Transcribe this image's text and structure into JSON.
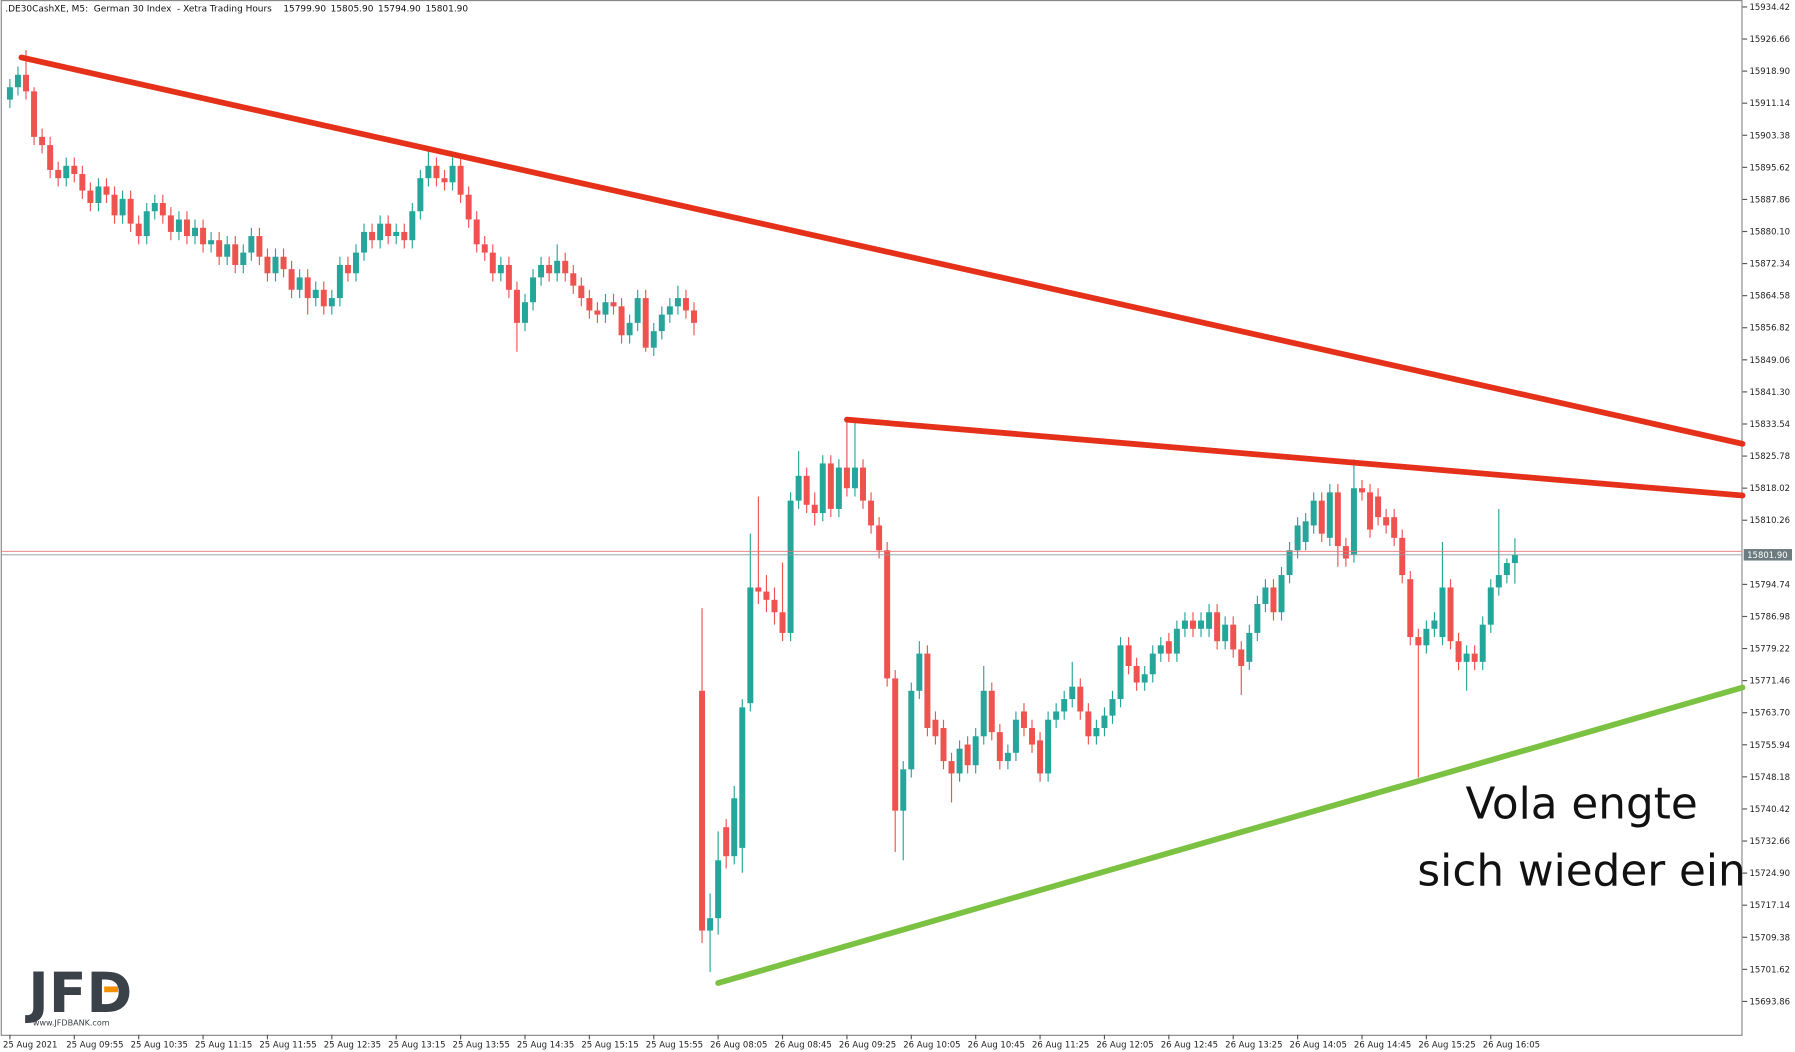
{
  "header": {
    "title": ".DE30CashXE, M5:  German 30 Index  - Xetra Trading Hours",
    "quote": [
      "15799.90",
      "15805.90",
      "15794.90",
      "15801.90"
    ]
  },
  "annotation": [
    "Vola engte",
    "sich wieder ein"
  ],
  "logo": {
    "text": "JFD",
    "url": "www.JFDBANK.com"
  },
  "chart_data": {
    "type": "candlestick",
    "up_color": "#26a69a",
    "down_color": "#ef5350",
    "categories": [
      "25 Aug 2021",
      null,
      null,
      null,
      null,
      null,
      null,
      null,
      "25 Aug 09:55",
      null,
      null,
      null,
      null,
      null,
      null,
      null,
      "25 Aug 10:35",
      null,
      null,
      null,
      null,
      null,
      null,
      null,
      "25 Aug 11:15",
      null,
      null,
      null,
      null,
      null,
      null,
      null,
      "25 Aug 11:55",
      null,
      null,
      null,
      null,
      null,
      null,
      null,
      "25 Aug 12:35",
      null,
      null,
      null,
      null,
      null,
      null,
      null,
      "25 Aug 13:15",
      null,
      null,
      null,
      null,
      null,
      null,
      null,
      "25 Aug 13:55",
      null,
      null,
      null,
      null,
      null,
      null,
      null,
      "25 Aug 14:35",
      null,
      null,
      null,
      null,
      null,
      null,
      null,
      "25 Aug 15:15",
      null,
      null,
      null,
      null,
      null,
      null,
      null,
      "25 Aug 15:55",
      null,
      null,
      null,
      null,
      null,
      null,
      null,
      "26 Aug 08:05",
      null,
      null,
      null,
      null,
      null,
      null,
      null,
      "26 Aug 08:45",
      null,
      null,
      null,
      null,
      null,
      null,
      null,
      "26 Aug 09:25",
      null,
      null,
      null,
      null,
      null,
      null,
      null,
      "26 Aug 10:05",
      null,
      null,
      null,
      null,
      null,
      null,
      null,
      "26 Aug 10:45",
      null,
      null,
      null,
      null,
      null,
      null,
      null,
      "26 Aug 11:25",
      null,
      null,
      null,
      null,
      null,
      null,
      null,
      "26 Aug 12:05",
      null,
      null,
      null,
      null,
      null,
      null,
      null,
      "26 Aug 12:45",
      null,
      null,
      null,
      null,
      null,
      null,
      null,
      "26 Aug 13:25",
      null,
      null,
      null,
      null,
      null,
      null,
      null,
      "26 Aug 14:05",
      null,
      null,
      null,
      null,
      null,
      null,
      null,
      "26 Aug 14:45",
      null,
      null,
      null,
      null,
      null,
      null,
      null,
      "26 Aug 15:25",
      null,
      null,
      null,
      null,
      null,
      null,
      null,
      "26 Aug 16:05",
      null,
      null,
      null
    ],
    "open": [
      15912,
      15915,
      15918,
      15914,
      15903,
      15901,
      15895,
      15893,
      15896,
      15894,
      15890,
      15887,
      15891,
      15889,
      15884,
      15888,
      15882,
      15879,
      15885,
      15887,
      15884,
      15880,
      15883,
      15879,
      15881,
      15877,
      15878,
      15874,
      15877,
      15872,
      15875,
      15879,
      15874,
      15870,
      15874,
      15871,
      15866,
      15869,
      15864,
      15866,
      15862,
      15864,
      15872,
      15870,
      15875,
      15880,
      15878,
      15882,
      15879,
      15880,
      15878,
      15885,
      15893,
      15896,
      15893,
      15892,
      15896,
      15889,
      15883,
      15877,
      15875,
      15870,
      15872,
      15866,
      15858,
      15863,
      15869,
      15872,
      15870,
      15873,
      15870,
      15867,
      15864,
      15861,
      15860,
      15863,
      15862,
      15855,
      15858,
      15864,
      15852,
      15856,
      15860,
      15862,
      15864,
      15861,
      15769,
      15711,
      15714,
      15736,
      15729,
      15731,
      15766,
      15794,
      15793,
      15791,
      15788,
      15783,
      15815,
      15821,
      15814,
      15812,
      15824,
      15813,
      15823,
      15818,
      15823,
      15815,
      15809,
      15803,
      15772,
      15740,
      15750,
      15769,
      15778,
      15762,
      15760,
      15752,
      15749,
      15756,
      15751,
      15758,
      15769,
      15759,
      15752,
      15754,
      15764,
      15760,
      15757,
      15749,
      15762,
      15764,
      15767,
      15770,
      15764,
      15758,
      15760,
      15763,
      15767,
      15780,
      15775,
      15771,
      15773,
      15778,
      15781,
      15778,
      15784,
      15786,
      15784,
      15784,
      15788,
      15781,
      15785,
      15779,
      15776,
      15783,
      15790,
      15794,
      15788,
      15797,
      15803,
      15805,
      15809,
      15815,
      15806,
      15817,
      15804,
      15802,
      15818,
      15817,
      15816,
      15811,
      15811,
      15806,
      15796,
      15782,
      15780,
      15784,
      15782,
      15794,
      15781,
      15776,
      15778,
      15776,
      15785,
      15794,
      15797,
      15799.9
    ],
    "high": [
      15917,
      15920,
      15924,
      15915,
      15905,
      15903,
      15897,
      15898,
      15898,
      15896,
      15892,
      15893,
      15893,
      15891,
      15890,
      15890,
      15884,
      15887,
      15889,
      15889,
      15886,
      15885,
      15885,
      15883,
      15883,
      15880,
      15880,
      15879,
      15879,
      15877,
      15881,
      15881,
      15876,
      15876,
      15876,
      15873,
      15871,
      15871,
      15868,
      15868,
      15866,
      15874,
      15874,
      15877,
      15882,
      15882,
      15884,
      15884,
      15882,
      15882,
      15887,
      15895,
      15900,
      15898,
      15895,
      15898,
      15898,
      15891,
      15885,
      15879,
      15877,
      15874,
      15874,
      15868,
      15865,
      15871,
      15874,
      15874,
      15877,
      15875,
      15872,
      15869,
      15866,
      15863,
      15865,
      15865,
      15864,
      15860,
      15866,
      15866,
      15858,
      15862,
      15864,
      15867,
      15866,
      15863,
      15789,
      15720,
      15735,
      15738,
      15746,
      15767,
      15807,
      15816,
      15797,
      15794,
      15800,
      15817,
      15827,
      15823,
      15817,
      15826,
      15826,
      15825,
      15834,
      15834,
      15825,
      15817,
      15811,
      15805,
      15774,
      15752,
      15771,
      15781,
      15780,
      15764,
      15762,
      15754,
      15757,
      15758,
      15760,
      15775,
      15771,
      15761,
      15756,
      15764,
      15766,
      15762,
      15759,
      15764,
      15766,
      15769,
      15776,
      15772,
      15766,
      15762,
      15765,
      15769,
      15782,
      15782,
      15777,
      15775,
      15780,
      15782,
      15783,
      15786,
      15788,
      15788,
      15788,
      15790,
      15790,
      15787,
      15787,
      15781,
      15785,
      15792,
      15796,
      15796,
      15799,
      15805,
      15811,
      15812,
      15817,
      15817,
      15819,
      15819,
      15806,
      15825,
      15820,
      15819,
      15818,
      15813,
      15813,
      15808,
      15798,
      15784,
      15786,
      15788,
      15805,
      15796,
      15783,
      15780,
      15780,
      15787,
      15796,
      15813,
      15801,
      15805.9
    ],
    "low": [
      15910,
      15913,
      15912,
      15901,
      15899,
      15893,
      15891,
      15891,
      15892,
      15888,
      15885,
      15885,
      15887,
      15882,
      15882,
      15880,
      15877,
      15877,
      15883,
      15882,
      15878,
      15878,
      15877,
      15877,
      15875,
      15875,
      15872,
      15872,
      15870,
      15870,
      15873,
      15872,
      15868,
      15868,
      15869,
      15864,
      15864,
      15860,
      15862,
      15860,
      15860,
      15862,
      15868,
      15868,
      15873,
      15876,
      15876,
      15877,
      15877,
      15876,
      15876,
      15883,
      15891,
      15891,
      15890,
      15890,
      15887,
      15881,
      15875,
      15873,
      15868,
      15868,
      15864,
      15851,
      15856,
      15861,
      15867,
      15868,
      15868,
      15868,
      15865,
      15862,
      15859,
      15858,
      15858,
      15860,
      15853,
      15853,
      15856,
      15851,
      15850,
      15854,
      15858,
      15860,
      15859,
      15855,
      15708,
      15701,
      15710,
      15726,
      15727,
      15725,
      15764,
      15790,
      15788,
      15785,
      15781,
      15781,
      15813,
      15812,
      15809,
      15810,
      15811,
      15811,
      15816,
      15816,
      15813,
      15807,
      15801,
      15770,
      15730,
      15728,
      15748,
      15767,
      15758,
      15756,
      15750,
      15742,
      15747,
      15749,
      15749,
      15756,
      15757,
      15750,
      15750,
      15752,
      15758,
      15754,
      15747,
      15747,
      15760,
      15762,
      15765,
      15762,
      15756,
      15756,
      15758,
      15761,
      15765,
      15773,
      15769,
      15769,
      15771,
      15776,
      15776,
      15776,
      15782,
      15782,
      15782,
      15782,
      15779,
      15779,
      15777,
      15768,
      15774,
      15781,
      15788,
      15786,
      15786,
      15795,
      15801,
      15803,
      15807,
      15805,
      15804,
      15799,
      15799,
      15800,
      15815,
      15806,
      15809,
      15807,
      15804,
      15795,
      15780,
      15748,
      15778,
      15782,
      15780,
      15779,
      15774,
      15769,
      15774,
      15774,
      15783,
      15792,
      15795,
      15794.9
    ],
    "close": [
      15915,
      15918,
      15914,
      15903,
      15901,
      15895,
      15893,
      15896,
      15894,
      15890,
      15887,
      15891,
      15889,
      15884,
      15888,
      15882,
      15879,
      15885,
      15887,
      15884,
      15880,
      15883,
      15879,
      15881,
      15877,
      15878,
      15874,
      15877,
      15872,
      15875,
      15879,
      15874,
      15870,
      15874,
      15871,
      15866,
      15869,
      15864,
      15866,
      15862,
      15864,
      15872,
      15870,
      15875,
      15880,
      15878,
      15882,
      15879,
      15880,
      15878,
      15885,
      15893,
      15896,
      15893,
      15892,
      15896,
      15889,
      15883,
      15877,
      15875,
      15870,
      15872,
      15866,
      15858,
      15863,
      15869,
      15872,
      15870,
      15873,
      15870,
      15867,
      15864,
      15861,
      15860,
      15863,
      15862,
      15855,
      15858,
      15864,
      15852,
      15856,
      15860,
      15862,
      15864,
      15861,
      15858,
      15711,
      15714,
      15728,
      15729,
      15743,
      15765,
      15794,
      15793,
      15791,
      15788,
      15783,
      15815,
      15821,
      15814,
      15812,
      15824,
      15813,
      15823,
      15818,
      15823,
      15815,
      15809,
      15803,
      15772,
      15740,
      15750,
      15769,
      15778,
      15760,
      15758,
      15752,
      15749,
      15755,
      15751,
      15758,
      15769,
      15759,
      15752,
      15754,
      15762,
      15760,
      15756,
      15749,
      15762,
      15764,
      15767,
      15770,
      15764,
      15758,
      15760,
      15763,
      15767,
      15780,
      15775,
      15771,
      15773,
      15778,
      15780,
      15778,
      15784,
      15786,
      15784,
      15786,
      15788,
      15781,
      15785,
      15779,
      15775,
      15783,
      15790,
      15794,
      15788,
      15797,
      15803,
      15809,
      15810,
      15815,
      15807,
      15817,
      15804,
      15801,
      15818,
      15817,
      15808,
      15811,
      15809,
      15806,
      15797,
      15782,
      15780,
      15784,
      15786,
      15794,
      15781,
      15776,
      15778,
      15776,
      15785,
      15794,
      15797,
      15799.9,
      15801.9
    ],
    "ylim": [
      15685.8,
      15936.1
    ],
    "yticks": [
      15934.42,
      15926.66,
      {
        "value": 15918.9,
        "label": "15918.90"
      },
      15911.14,
      15903.38,
      15895.62,
      15887.86,
      {
        "value": 15880.1,
        "label": "15880.10"
      },
      15872.34,
      15864.58,
      15856.82,
      15849.06,
      {
        "value": 15841.3,
        "label": "15841.30"
      },
      15833.54,
      15825.78,
      15818.02,
      15810.26,
      15794.74,
      15786.98,
      15779.22,
      15771.46,
      {
        "value": 15763.7,
        "label": "15763.70"
      },
      15755.94,
      15748.18,
      15740.42,
      15732.66,
      {
        "value": 15724.9,
        "label": "15724.90"
      },
      15717.14,
      15709.38,
      15701.62,
      15693.86
    ],
    "last_price": {
      "value": 15801.9,
      "label": "15801.90"
    }
  }
}
